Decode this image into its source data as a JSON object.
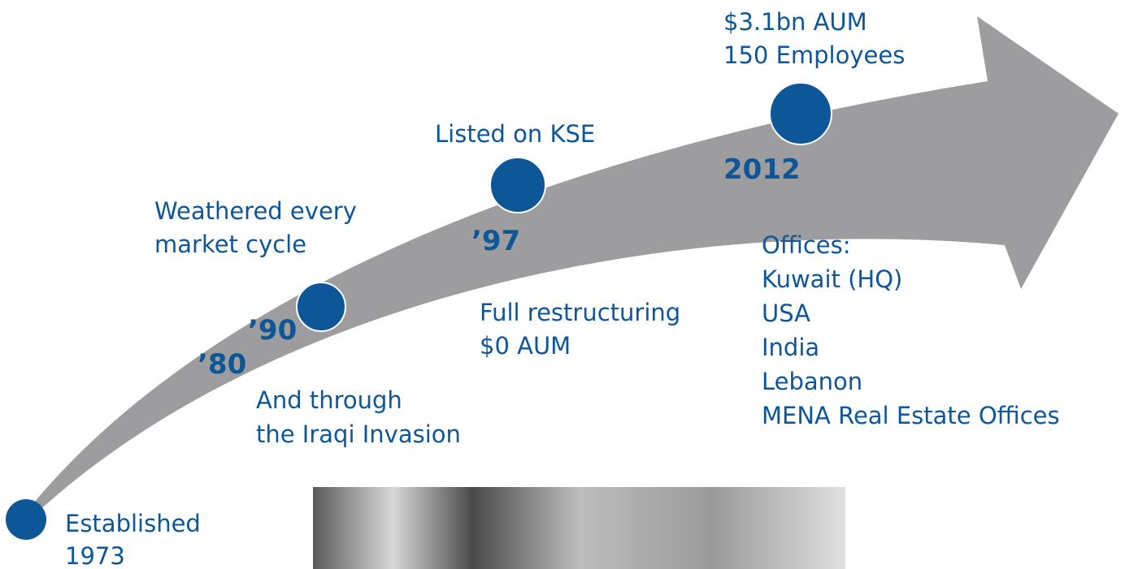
{
  "events": [
    {
      "text": [
        "Established",
        "1973"
      ]
    },
    {
      "year": "’80"
    },
    {
      "year": "’90",
      "above": [
        "Weathered every",
        "market cycle"
      ],
      "below": [
        "And through",
        "the Iraqi Invasion"
      ]
    },
    {
      "year": "’97",
      "above": [
        "Listed on KSE"
      ],
      "below": [
        "Full restructuring",
        "$0 AUM"
      ]
    },
    {
      "year": "2012",
      "above": [
        "$3.1bn AUM",
        "150 Employees"
      ],
      "below": [
        "Offices:",
        "Kuwait (HQ)",
        "USA",
        "India",
        "Lebanon",
        "MENA Real Estate Offices"
      ]
    }
  ]
}
